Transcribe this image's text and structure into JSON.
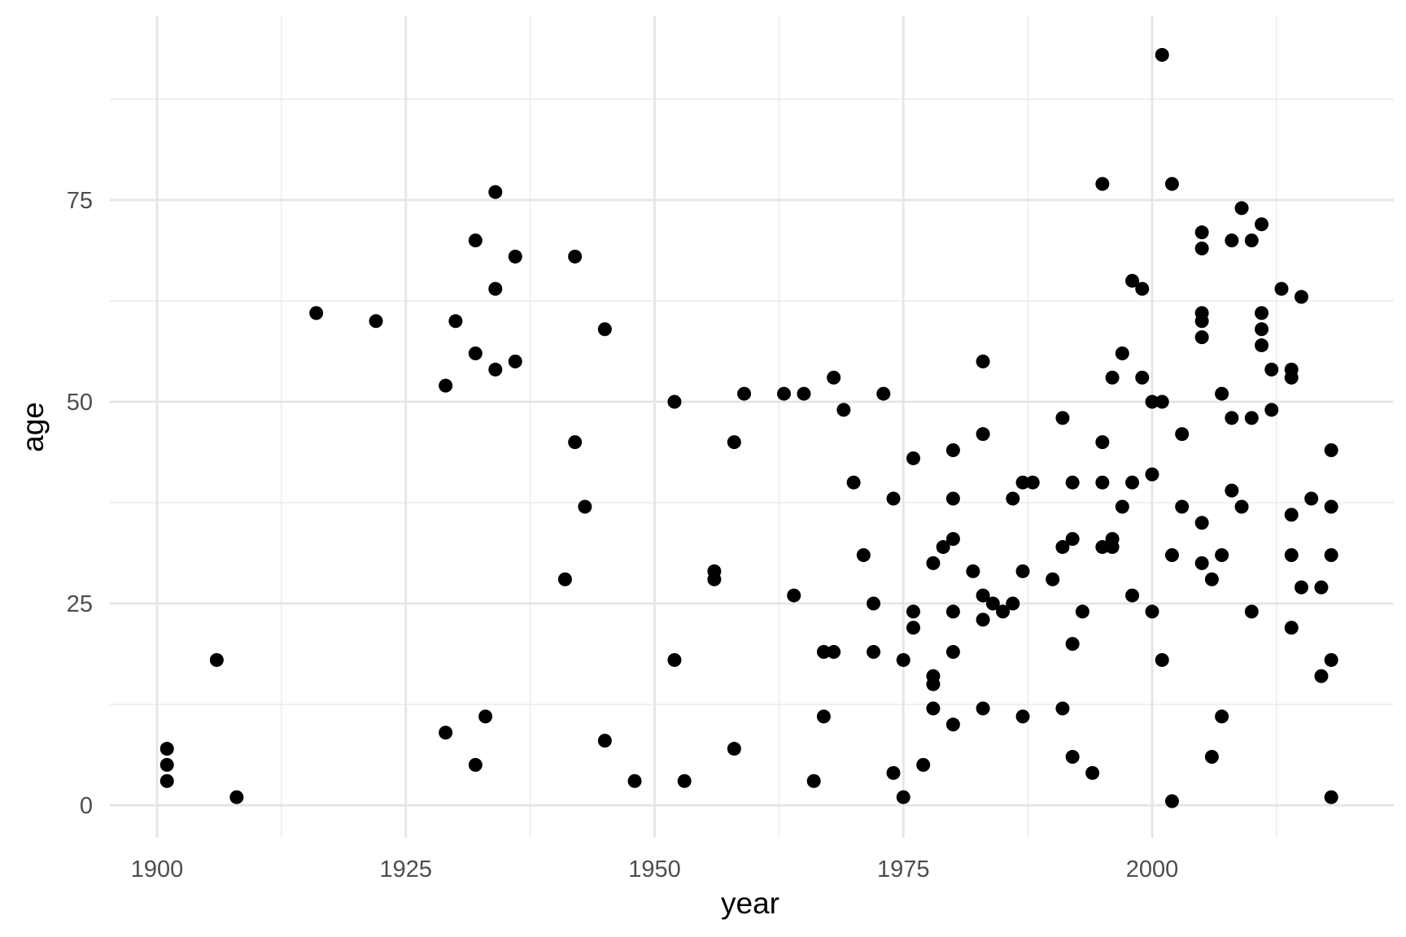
{
  "chart_data": {
    "type": "scatter",
    "title": "",
    "xlabel": "year",
    "ylabel": "age",
    "xlim": [
      1895,
      2020
    ],
    "ylim": [
      -4,
      97
    ],
    "x_ticks": [
      1900,
      1925,
      1950,
      1975,
      2000
    ],
    "x_tick_labels": [
      "1900",
      "1925",
      "1950",
      "1975",
      "2000"
    ],
    "y_ticks": [
      0,
      25,
      50,
      75
    ],
    "y_tick_labels": [
      "0",
      "25",
      "50",
      "75"
    ],
    "grid": true,
    "legend": "none",
    "point_color": "#000000",
    "points": [
      [
        1901,
        7
      ],
      [
        1901,
        5
      ],
      [
        1901,
        3
      ],
      [
        1906,
        18
      ],
      [
        1908,
        1
      ],
      [
        1916,
        61
      ],
      [
        1922,
        60
      ],
      [
        1929,
        52
      ],
      [
        1929,
        9
      ],
      [
        1930,
        60
      ],
      [
        1932,
        70
      ],
      [
        1932,
        56
      ],
      [
        1932,
        5
      ],
      [
        1933,
        11
      ],
      [
        1934,
        76
      ],
      [
        1934,
        64
      ],
      [
        1934,
        54
      ],
      [
        1936,
        68
      ],
      [
        1936,
        55
      ],
      [
        1941,
        28
      ],
      [
        1942,
        68
      ],
      [
        1942,
        45
      ],
      [
        1943,
        37
      ],
      [
        1945,
        59
      ],
      [
        1945,
        8
      ],
      [
        1948,
        3
      ],
      [
        1952,
        50
      ],
      [
        1952,
        18
      ],
      [
        1953,
        3
      ],
      [
        1956,
        29
      ],
      [
        1956,
        28
      ],
      [
        1958,
        45
      ],
      [
        1958,
        7
      ],
      [
        1959,
        51
      ],
      [
        1963,
        51
      ],
      [
        1964,
        26
      ],
      [
        1965,
        51
      ],
      [
        1966,
        3
      ],
      [
        1967,
        19
      ],
      [
        1967,
        11
      ],
      [
        1968,
        53
      ],
      [
        1968,
        19
      ],
      [
        1969,
        49
      ],
      [
        1970,
        40
      ],
      [
        1971,
        31
      ],
      [
        1972,
        25
      ],
      [
        1972,
        19
      ],
      [
        1973,
        51
      ],
      [
        1974,
        38
      ],
      [
        1974,
        4
      ],
      [
        1975,
        18
      ],
      [
        1975,
        1
      ],
      [
        1976,
        43
      ],
      [
        1976,
        24
      ],
      [
        1976,
        22
      ],
      [
        1977,
        5
      ],
      [
        1978,
        30
      ],
      [
        1978,
        16
      ],
      [
        1978,
        15
      ],
      [
        1978,
        12
      ],
      [
        1979,
        32
      ],
      [
        1980,
        44
      ],
      [
        1980,
        38
      ],
      [
        1980,
        33
      ],
      [
        1980,
        24
      ],
      [
        1980,
        19
      ],
      [
        1980,
        10
      ],
      [
        1982,
        29
      ],
      [
        1983,
        55
      ],
      [
        1983,
        46
      ],
      [
        1983,
        26
      ],
      [
        1983,
        23
      ],
      [
        1983,
        12
      ],
      [
        1984,
        25
      ],
      [
        1985,
        24
      ],
      [
        1986,
        38
      ],
      [
        1986,
        25
      ],
      [
        1987,
        40
      ],
      [
        1987,
        29
      ],
      [
        1987,
        11
      ],
      [
        1988,
        40
      ],
      [
        1990,
        28
      ],
      [
        1991,
        48
      ],
      [
        1991,
        32
      ],
      [
        1991,
        12
      ],
      [
        1992,
        40
      ],
      [
        1992,
        33
      ],
      [
        1992,
        20
      ],
      [
        1992,
        6
      ],
      [
        1993,
        24
      ],
      [
        1994,
        4
      ],
      [
        1995,
        77
      ],
      [
        1995,
        45
      ],
      [
        1995,
        40
      ],
      [
        1995,
        32
      ],
      [
        1996,
        53
      ],
      [
        1996,
        33
      ],
      [
        1996,
        32
      ],
      [
        1997,
        56
      ],
      [
        1997,
        37
      ],
      [
        1998,
        65
      ],
      [
        1998,
        40
      ],
      [
        1998,
        26
      ],
      [
        1999,
        64
      ],
      [
        1999,
        53
      ],
      [
        2000,
        50
      ],
      [
        2000,
        41
      ],
      [
        2000,
        24
      ],
      [
        2001,
        93
      ],
      [
        2001,
        50
      ],
      [
        2001,
        18
      ],
      [
        2002,
        77
      ],
      [
        2002,
        31
      ],
      [
        2002,
        0.5
      ],
      [
        2003,
        46
      ],
      [
        2003,
        37
      ],
      [
        2005,
        71
      ],
      [
        2005,
        69
      ],
      [
        2005,
        61
      ],
      [
        2005,
        60
      ],
      [
        2005,
        58
      ],
      [
        2005,
        35
      ],
      [
        2005,
        30
      ],
      [
        2006,
        28
      ],
      [
        2006,
        6
      ],
      [
        2007,
        51
      ],
      [
        2007,
        31
      ],
      [
        2007,
        11
      ],
      [
        2008,
        70
      ],
      [
        2008,
        48
      ],
      [
        2008,
        39
      ],
      [
        2009,
        74
      ],
      [
        2009,
        37
      ],
      [
        2010,
        70
      ],
      [
        2010,
        48
      ],
      [
        2010,
        24
      ],
      [
        2011,
        72
      ],
      [
        2011,
        61
      ],
      [
        2011,
        59
      ],
      [
        2011,
        57
      ],
      [
        2012,
        54
      ],
      [
        2012,
        49
      ],
      [
        2013,
        64
      ],
      [
        2014,
        54
      ],
      [
        2014,
        53
      ],
      [
        2014,
        36
      ],
      [
        2014,
        31
      ],
      [
        2014,
        22
      ],
      [
        2015,
        63
      ],
      [
        2015,
        27
      ],
      [
        2016,
        38
      ],
      [
        2017,
        27
      ],
      [
        2017,
        16
      ],
      [
        2018,
        44
      ],
      [
        2018,
        37
      ],
      [
        2018,
        31
      ],
      [
        2018,
        18
      ],
      [
        2018,
        1
      ]
    ]
  }
}
